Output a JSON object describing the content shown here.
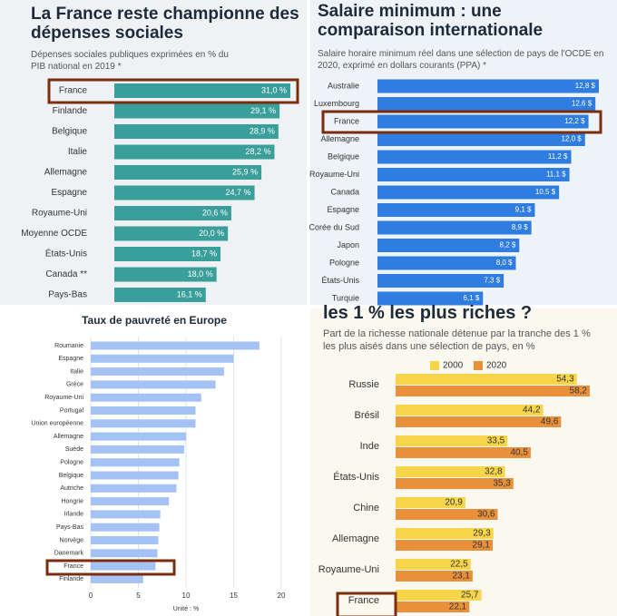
{
  "chart_data": [
    {
      "type": "bar",
      "orientation": "horizontal",
      "title": "La France reste championne des dépenses sociales",
      "subtitle": "Dépenses sociales publiques exprimées en % du PIB national en 2019 *",
      "categories": [
        "France",
        "Finlande",
        "Belgique",
        "Italie",
        "Allemagne",
        "Espagne",
        "Royaume-Uni",
        "Moyenne OCDE",
        "États-Unis",
        "Canada **",
        "Pays-Bas"
      ],
      "values": [
        31.0,
        29.1,
        28.9,
        28.2,
        25.9,
        24.7,
        20.6,
        20.0,
        18.7,
        18.0,
        16.1
      ],
      "value_labels": [
        "31,0 %",
        "29,1 %",
        "28,9 %",
        "28,2 %",
        "25,9 %",
        "24,7 %",
        "20,6 %",
        "20,0 %",
        "18,7 %",
        "18,0 %",
        "16,1 %"
      ],
      "color": "#3a9e9a"
    },
    {
      "type": "bar",
      "orientation": "horizontal",
      "title": "Salaire minimum : une comparaison internationale",
      "subtitle": "Salaire horaire minimum réel dans une sélection de pays de l'OCDE en 2020, exprimé en dollars courants (PPA) *",
      "categories": [
        "Australie",
        "Luxembourg",
        "France",
        "Allemagne",
        "Belgique",
        "Royaume-Uni",
        "Canada",
        "Espagne",
        "Corée du Sud",
        "Japon",
        "Pologne",
        "États-Unis",
        "Turquie"
      ],
      "values": [
        12.8,
        12.6,
        12.2,
        12.0,
        11.2,
        11.1,
        10.5,
        9.1,
        8.9,
        8.2,
        8.0,
        7.3,
        6.1
      ],
      "value_labels": [
        "12,8 $",
        "12,6 $",
        "12,2 $",
        "12,0 $",
        "11,2 $",
        "11,1 $",
        "10,5 $",
        "9,1 $",
        "8,9 $",
        "8,2 $",
        "8,0 $",
        "7,3 $",
        "6,1 $"
      ],
      "color": "#2f7de1"
    },
    {
      "type": "bar",
      "orientation": "horizontal",
      "title": "Taux de pauvreté en Europe",
      "xlabel": "Unité : %",
      "categories": [
        "Roumanie",
        "Espagne",
        "Italie",
        "Grèce",
        "Royaume-Uni",
        "Portugal",
        "Union européenne",
        "Allemagne",
        "Suède",
        "Pologne",
        "Belgique",
        "Autriche",
        "Hongrie",
        "Irlande",
        "Pays-Bas",
        "Norvège",
        "Danemark",
        "France",
        "Finlande"
      ],
      "values": [
        17.7,
        15.0,
        14.0,
        13.1,
        11.6,
        11.0,
        11.0,
        10.0,
        9.8,
        9.3,
        9.2,
        9.0,
        8.2,
        7.3,
        7.2,
        7.1,
        7.0,
        6.8,
        5.5
      ],
      "xlim": [
        0,
        20
      ],
      "xticks": [
        0,
        5,
        10,
        15,
        20
      ],
      "grid": true,
      "color": "#a4c2f4"
    },
    {
      "type": "grouped-bar",
      "orientation": "horizontal",
      "title": "les 1 % les plus riches ?",
      "subtitle": "Part de la richesse nationale détenue par la tranche des 1 % les plus aisés dans une sélection de pays, en %",
      "categories": [
        "Russie",
        "Brésil",
        "Inde",
        "États-Unis",
        "Chine",
        "Allemagne",
        "Royaume-Uni",
        "France"
      ],
      "series": [
        {
          "name": "2000",
          "color": "#f7d54a",
          "values": [
            54.3,
            44.2,
            33.5,
            32.8,
            20.9,
            29.3,
            22.5,
            25.7
          ],
          "value_labels": [
            "54,3",
            "44,2",
            "33,5",
            "32,8",
            "20,9",
            "29,3",
            "22,5",
            "25,7"
          ]
        },
        {
          "name": "2020",
          "color": "#e8913a",
          "values": [
            58.2,
            49.6,
            40.5,
            35.3,
            30.6,
            29.1,
            23.1,
            22.1
          ],
          "value_labels": [
            "58,2",
            "49,6",
            "40,5",
            "35,3",
            "30,6",
            "29,1",
            "23,1",
            "22,1"
          ]
        }
      ]
    }
  ]
}
